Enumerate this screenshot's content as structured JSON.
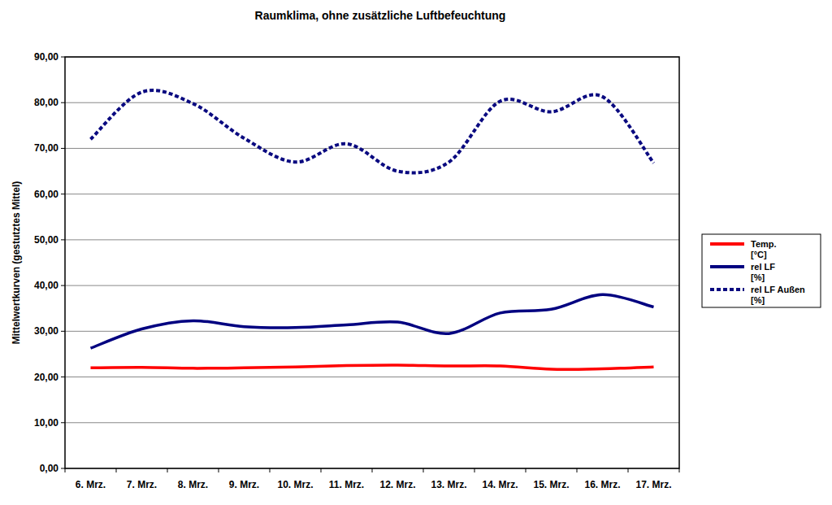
{
  "chart_data": {
    "type": "line",
    "title": "Raumklima, ohne zusätzliche Luftbefeuchtung",
    "y_label": "Mittelwertkurven (gestutztes Mittel)",
    "categories": [
      "6. Mrz.",
      "7. Mrz.",
      "8. Mrz.",
      "9. Mrz.",
      "10. Mrz.",
      "11. Mrz.",
      "12. Mrz.",
      "13. Mrz.",
      "14. Mrz.",
      "15. Mrz.",
      "16. Mrz.",
      "17. Mrz."
    ],
    "series": [
      {
        "name": "Temp. [°C]",
        "color": "#ff0000",
        "line_style": "solid",
        "values": [
          22.0,
          22.1,
          21.9,
          22.0,
          22.2,
          22.5,
          22.6,
          22.4,
          22.4,
          21.7,
          21.8,
          22.2
        ]
      },
      {
        "name": "rel LF [%]",
        "color": "#000080",
        "line_style": "solid",
        "values": [
          26.3,
          30.5,
          32.3,
          31.0,
          30.8,
          31.4,
          32.0,
          29.5,
          34.0,
          34.8,
          38.0,
          35.3
        ]
      },
      {
        "name": "rel LF Außen [%]",
        "color": "#0a0a80",
        "line_style": "dotted",
        "values": [
          72.0,
          82.3,
          79.8,
          72.2,
          67.0,
          71.0,
          65.0,
          67.0,
          80.3,
          78.0,
          81.3,
          66.8
        ]
      }
    ],
    "ylim": [
      0,
      90
    ],
    "yticks": [
      {
        "value": 0,
        "label": "0,00"
      },
      {
        "value": 10,
        "label": "10,00"
      },
      {
        "value": 20,
        "label": "20,00"
      },
      {
        "value": 30,
        "label": "30,00"
      },
      {
        "value": 40,
        "label": "40,00"
      },
      {
        "value": 50,
        "label": "50,00"
      },
      {
        "value": 60,
        "label": "60,00"
      },
      {
        "value": 70,
        "label": "70,00"
      },
      {
        "value": 80,
        "label": "80,00"
      },
      {
        "value": 90,
        "label": "90,00"
      }
    ],
    "grid": true,
    "legend": "right"
  }
}
